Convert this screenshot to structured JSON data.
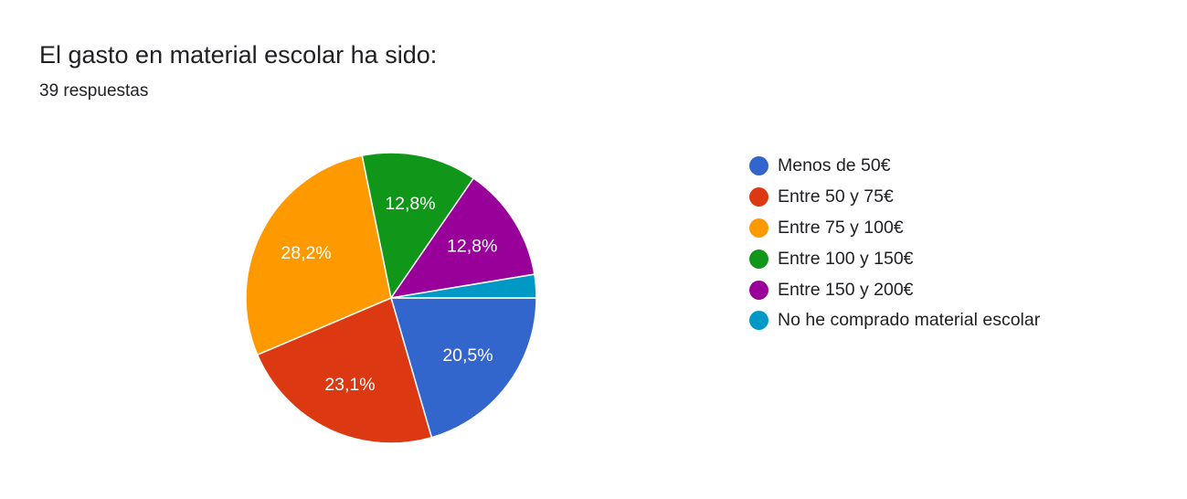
{
  "header": {
    "title": "El gasto en material escolar ha sido:",
    "subtitle": "39 respuestas"
  },
  "chart_data": {
    "type": "pie",
    "start_angle_deg": 90,
    "direction": "clockwise",
    "slices": [
      {
        "label": "Menos de 50€",
        "value": 20.5,
        "display": "20,5%",
        "color": "#3366cc"
      },
      {
        "label": "Entre 50 y 75€",
        "value": 23.1,
        "display": "23,1%",
        "color": "#dc3912"
      },
      {
        "label": "Entre 75 y 100€",
        "value": 28.2,
        "display": "28,2%",
        "color": "#ff9900"
      },
      {
        "label": "Entre 100 y 150€",
        "value": 12.8,
        "display": "12,8%",
        "color": "#109618"
      },
      {
        "label": "Entre 150 y 200€",
        "value": 12.8,
        "display": "12,8%",
        "color": "#990099"
      },
      {
        "label": "No he comprado material escolar",
        "value": 2.6,
        "display": "",
        "color": "#0099c6"
      }
    ],
    "legend_position": "right"
  }
}
